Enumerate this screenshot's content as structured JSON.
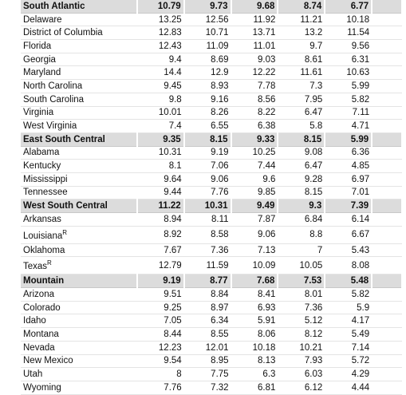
{
  "groups": [
    {
      "name": "South Atlantic",
      "values": [
        "10.79",
        "9.73",
        "9.68",
        "8.74",
        "6.77"
      ],
      "states": [
        {
          "name": "Delaware",
          "values": [
            "13.25",
            "12.56",
            "11.92",
            "11.21",
            "10.18"
          ]
        },
        {
          "name": "District of Columbia",
          "values": [
            "12.83",
            "10.71",
            "13.71",
            "13.2",
            "11.54"
          ]
        },
        {
          "name": "Florida",
          "values": [
            "12.43",
            "11.09",
            "11.01",
            "9.7",
            "9.56"
          ]
        },
        {
          "name": "Georgia",
          "values": [
            "9.4",
            "8.69",
            "9.03",
            "8.61",
            "6.31"
          ]
        },
        {
          "name": "Maryland",
          "values": [
            "14.4",
            "12.9",
            "12.22",
            "11.61",
            "10.63"
          ]
        },
        {
          "name": "North Carolina",
          "values": [
            "9.45",
            "8.93",
            "7.78",
            "7.3",
            "5.99"
          ]
        },
        {
          "name": "South Carolina",
          "values": [
            "9.8",
            "9.16",
            "8.56",
            "7.95",
            "5.82"
          ]
        },
        {
          "name": "Virginia",
          "values": [
            "10.01",
            "8.26",
            "8.22",
            "6.47",
            "7.11"
          ]
        },
        {
          "name": "West Virginia",
          "values": [
            "7.4",
            "6.55",
            "6.38",
            "5.8",
            "4.71"
          ]
        }
      ]
    },
    {
      "name": "East South Central",
      "values": [
        "9.35",
        "8.15",
        "9.33",
        "8.15",
        "5.99"
      ],
      "states": [
        {
          "name": "Alabama",
          "values": [
            "10.31",
            "9.19",
            "10.25",
            "9.08",
            "6.36"
          ]
        },
        {
          "name": "Kentucky",
          "values": [
            "8.1",
            "7.06",
            "7.44",
            "6.47",
            "4.85"
          ]
        },
        {
          "name": "Mississippi",
          "values": [
            "9.64",
            "9.06",
            "9.6",
            "9.28",
            "6.97"
          ]
        },
        {
          "name": "Tennessee",
          "values": [
            "9.44",
            "7.76",
            "9.85",
            "8.15",
            "7.01"
          ]
        }
      ]
    },
    {
      "name": "West South Central",
      "values": [
        "11.22",
        "10.31",
        "9.49",
        "9.3",
        "7.39"
      ],
      "states": [
        {
          "name": "Arkansas",
          "values": [
            "8.94",
            "8.11",
            "7.87",
            "6.84",
            "6.14"
          ]
        },
        {
          "name": "Louisiana",
          "note": "R",
          "values": [
            "8.92",
            "8.58",
            "9.06",
            "8.8",
            "6.67"
          ]
        },
        {
          "name": "Oklahoma",
          "values": [
            "7.67",
            "7.36",
            "7.13",
            "7",
            "5.43"
          ]
        },
        {
          "name": "Texas",
          "note": "R",
          "values": [
            "12.79",
            "11.59",
            "10.09",
            "10.05",
            "8.08"
          ]
        }
      ]
    },
    {
      "name": "Mountain",
      "values": [
        "9.19",
        "8.77",
        "7.68",
        "7.53",
        "5.48"
      ],
      "states": [
        {
          "name": "Arizona",
          "values": [
            "9.51",
            "8.84",
            "8.41",
            "8.01",
            "5.82"
          ]
        },
        {
          "name": "Colorado",
          "values": [
            "9.25",
            "8.97",
            "6.93",
            "7.36",
            "5.9"
          ]
        },
        {
          "name": "Idaho",
          "values": [
            "7.05",
            "6.34",
            "5.91",
            "5.12",
            "4.17"
          ]
        },
        {
          "name": "Montana",
          "values": [
            "8.44",
            "8.55",
            "8.06",
            "8.12",
            "5.49"
          ]
        },
        {
          "name": "Nevada",
          "values": [
            "12.23",
            "12.01",
            "10.18",
            "10.21",
            "7.14"
          ]
        },
        {
          "name": "New Mexico",
          "values": [
            "9.54",
            "8.95",
            "8.13",
            "7.93",
            "5.72"
          ]
        },
        {
          "name": "Utah",
          "values": [
            "8",
            "7.75",
            "6.3",
            "6.03",
            "4.29"
          ]
        },
        {
          "name": "Wyoming",
          "values": [
            "7.76",
            "7.32",
            "6.81",
            "6.12",
            "4.44"
          ]
        }
      ]
    }
  ]
}
